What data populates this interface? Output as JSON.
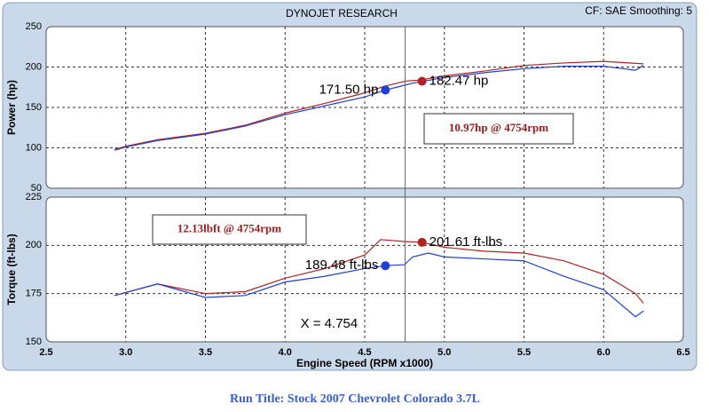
{
  "header": {
    "settings": "CF: SAE  Smoothing: 5"
  },
  "run_title": "Run Title: Stock 2007 Chevrolet Colorado 3.7L",
  "chart_data": [
    {
      "type": "line",
      "title": "DYNOJET RESEARCH",
      "ylabel": "Power (hp)",
      "ylim": [
        50,
        250
      ],
      "yticks": [
        50,
        100,
        150,
        200,
        250
      ],
      "grid": true,
      "series": [
        {
          "color": "#b22222",
          "x": [
            2.93,
            3.0,
            3.2,
            3.5,
            3.75,
            4.0,
            4.25,
            4.5,
            4.62,
            4.754,
            4.85,
            5.0,
            5.25,
            5.5,
            5.75,
            6.0,
            6.25
          ],
          "values": [
            98,
            102,
            110,
            118,
            128,
            143,
            155,
            168,
            176,
            182.47,
            184,
            189,
            195,
            202,
            205,
            207,
            204
          ]
        },
        {
          "color": "#1f3fd6",
          "x": [
            2.93,
            3.0,
            3.2,
            3.5,
            3.75,
            4.0,
            4.25,
            4.5,
            4.63,
            4.7,
            4.8,
            5.0,
            5.25,
            5.5,
            5.75,
            6.0,
            6.2,
            6.25
          ],
          "values": [
            97,
            101,
            109,
            117,
            127,
            141,
            152,
            163,
            171.5,
            175,
            180,
            187,
            193,
            198,
            201,
            201,
            196,
            202
          ]
        }
      ],
      "points": [
        {
          "x": 4.63,
          "y": 171.5,
          "label": "171.50 hp",
          "color": "#1f3fd6"
        },
        {
          "x": 4.86,
          "y": 182.47,
          "label": "182.47 hp",
          "color": "#b22222"
        }
      ],
      "annotations": [
        "10.97hp @ 4754rpm"
      ]
    },
    {
      "type": "line",
      "ylabel": "Torque (ft-lbs)",
      "xlabel": "Engine Speed (RPM x1000)",
      "xlim": [
        2.5,
        6.5
      ],
      "xticks": [
        2.5,
        {
          "value": 3,
          "label": "3.0"
        },
        3.5,
        {
          "value": 4,
          "label": "4.0"
        },
        4.5,
        {
          "value": 5,
          "label": "5.0"
        },
        5.5,
        {
          "value": 6,
          "label": "6.0"
        },
        6.5
      ],
      "ylim": [
        150,
        225
      ],
      "yticks": [
        150,
        175,
        200,
        225
      ],
      "grid": true,
      "series": [
        {
          "color": "#b22222",
          "x": [
            2.93,
            3.2,
            3.5,
            3.75,
            4.0,
            4.25,
            4.5,
            4.6,
            4.75,
            4.86,
            5.0,
            5.25,
            5.5,
            5.75,
            6.0,
            6.2,
            6.25
          ],
          "values": [
            174,
            180,
            175,
            176,
            183,
            188,
            195,
            203,
            202,
            201.61,
            199,
            197,
            196,
            192,
            185,
            175,
            170
          ]
        },
        {
          "color": "#1f3fd6",
          "x": [
            2.93,
            3.2,
            3.5,
            3.75,
            4.0,
            4.25,
            4.5,
            4.63,
            4.75,
            4.8,
            4.9,
            5.0,
            5.25,
            5.5,
            5.75,
            6.0,
            6.2,
            6.25
          ],
          "values": [
            174,
            180,
            173,
            174,
            181,
            184,
            188,
            189.48,
            190,
            194,
            196,
            194,
            193,
            192,
            184,
            177,
            163,
            166
          ]
        }
      ],
      "points": [
        {
          "x": 4.63,
          "y": 189.48,
          "label": "189.48 ft-lbs",
          "color": "#1f3fd6"
        },
        {
          "x": 4.86,
          "y": 201.61,
          "label": "201.61 ft-lbs",
          "color": "#b22222"
        }
      ],
      "annotations": [
        "12.13lbft @ 4754rpm"
      ],
      "cursor": {
        "x": 4.754,
        "label": "X = 4.754"
      }
    }
  ]
}
